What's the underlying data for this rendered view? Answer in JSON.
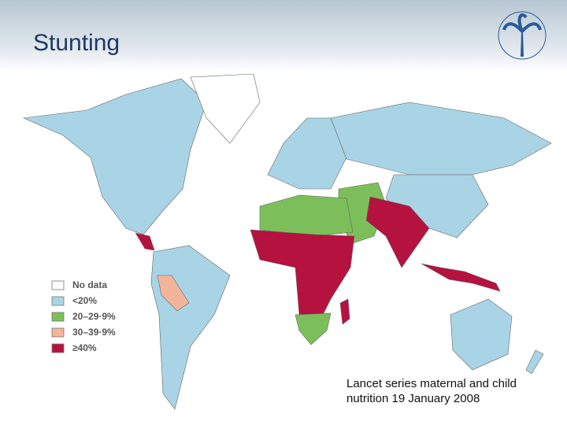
{
  "header": {
    "title": "Stunting"
  },
  "legend": {
    "items": [
      {
        "label": "No data",
        "color": "#ffffff"
      },
      {
        "label": "<20%",
        "color": "#a9d4e5"
      },
      {
        "label": "20–29·9%",
        "color": "#7cbf5a"
      },
      {
        "label": "30–39·9%",
        "color": "#f3b59a"
      },
      {
        "label": "≥40%",
        "color": "#b5123f"
      }
    ]
  },
  "caption": {
    "lines": [
      "Lancet series maternal and child",
      "nutrition 19 January 2008"
    ]
  }
}
